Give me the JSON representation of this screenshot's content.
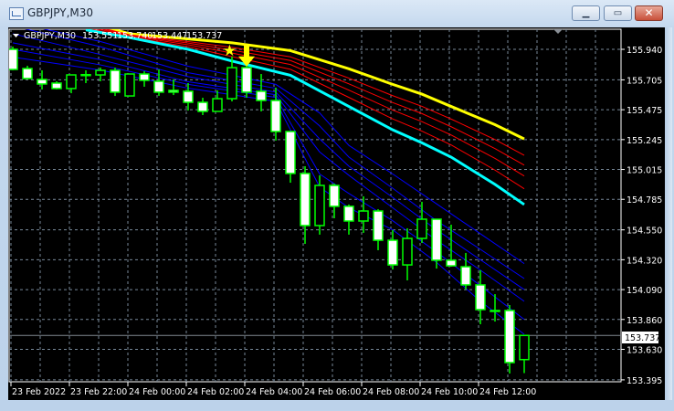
{
  "window": {
    "title": "GBPJPY,M30",
    "buttons": {
      "minimize": "minimize-icon",
      "maximize": "maximize-icon",
      "close": "close-icon"
    }
  },
  "chart_header": {
    "symbol": "GBPJPY,M30",
    "open": "153.551",
    "high": "153.740",
    "low": "153.447",
    "close": "153.737"
  },
  "colors": {
    "background": "#000000",
    "grid": "#778899",
    "candle_outline": "#00ff00",
    "bear_body": "#ffffff",
    "bull_body": "#000000",
    "yellow_line": "#ffff00",
    "red_lines": "#ff0000",
    "cyan_line": "#00ffff",
    "blue_lines": "#0000ff",
    "signal": "#ffff00"
  },
  "chart_data": {
    "type": "candlestick",
    "symbol": "GBPJPY",
    "timeframe": "M30",
    "ylim": [
      153.395,
      156.11
    ],
    "grid": true,
    "current_price": "153.737",
    "y_ticks": [
      "155.940",
      "155.705",
      "155.475",
      "155.245",
      "155.015",
      "154.785",
      "154.550",
      "154.320",
      "154.090",
      "153.860",
      "153.630",
      "153.395"
    ],
    "x_ticks": [
      {
        "label": "23 Feb 2022",
        "candle": 0
      },
      {
        "label": "23 Feb 22:00",
        "candle": 4
      },
      {
        "label": "24 Feb 00:00",
        "candle": 8
      },
      {
        "label": "24 Feb 02:00",
        "candle": 12
      },
      {
        "label": "24 Feb 04:00",
        "candle": 16
      },
      {
        "label": "24 Feb 06:00",
        "candle": 20
      },
      {
        "label": "24 Feb 08:00",
        "candle": 24
      },
      {
        "label": "24 Feb 10:00",
        "candle": 28
      },
      {
        "label": "24 Feb 12:00",
        "candle": 32
      }
    ],
    "candles_ohlc": [
      [
        155.94,
        155.961,
        155.778,
        155.785
      ],
      [
        155.792,
        155.813,
        155.708,
        155.715
      ],
      [
        155.708,
        155.778,
        155.631,
        155.673
      ],
      [
        155.68,
        155.694,
        155.631,
        155.638
      ],
      [
        155.638,
        155.743,
        155.602,
        155.743
      ],
      [
        155.743,
        155.778,
        155.68,
        155.745
      ],
      [
        155.743,
        155.799,
        155.694,
        155.778
      ],
      [
        155.778,
        155.799,
        155.581,
        155.61
      ],
      [
        155.581,
        155.75,
        155.581,
        155.75
      ],
      [
        155.75,
        155.771,
        155.652,
        155.701
      ],
      [
        155.694,
        155.785,
        155.581,
        155.61
      ],
      [
        155.624,
        155.708,
        155.588,
        155.61
      ],
      [
        155.617,
        155.68,
        155.469,
        155.532
      ],
      [
        155.532,
        155.567,
        155.434,
        155.462
      ],
      [
        155.462,
        155.624,
        155.462,
        155.56
      ],
      [
        155.56,
        155.884,
        155.539,
        155.799
      ],
      [
        155.799,
        155.82,
        155.567,
        155.61
      ],
      [
        155.617,
        155.75,
        155.462,
        155.546
      ],
      [
        155.546,
        155.645,
        155.237,
        155.307
      ],
      [
        155.307,
        155.307,
        154.913,
        154.984
      ],
      [
        154.984,
        155.04,
        154.442,
        154.583
      ],
      [
        154.583,
        154.97,
        154.513,
        154.892
      ],
      [
        154.892,
        154.906,
        154.639,
        154.731
      ],
      [
        154.731,
        154.745,
        154.513,
        154.618
      ],
      [
        154.618,
        154.808,
        154.527,
        154.695
      ],
      [
        154.695,
        154.709,
        154.393,
        154.47
      ],
      [
        154.47,
        154.548,
        154.245,
        154.28
      ],
      [
        154.28,
        154.562,
        154.161,
        154.484
      ],
      [
        154.484,
        154.766,
        154.449,
        154.632
      ],
      [
        154.632,
        154.632,
        154.252,
        154.316
      ],
      [
        154.316,
        154.59,
        154.266,
        154.273
      ],
      [
        154.266,
        154.372,
        154.091,
        154.126
      ],
      [
        154.126,
        154.238,
        153.823,
        153.936
      ],
      [
        153.929,
        154.055,
        153.844,
        153.929
      ],
      [
        153.929,
        153.971,
        153.444,
        153.528
      ],
      [
        153.551,
        153.74,
        153.447,
        153.737
      ]
    ],
    "lines": [
      {
        "color": "yellow_line",
        "width": 3,
        "candles": [
          5,
          8,
          12,
          15,
          19,
          23,
          26,
          28,
          30,
          33,
          35
        ],
        "values": [
          156.15,
          156.06,
          156.02,
          155.99,
          155.93,
          155.79,
          155.67,
          155.595,
          155.5,
          155.36,
          155.25
        ]
      },
      {
        "color": "red_lines",
        "width": 1,
        "candles": [
          5,
          8,
          12,
          15,
          19,
          23,
          26,
          28,
          30,
          33,
          35
        ],
        "values": [
          156.135,
          156.052,
          156.0,
          155.955,
          155.882,
          155.718,
          155.583,
          155.501,
          155.403,
          155.245,
          155.124
        ]
      },
      {
        "color": "red_lines",
        "width": 1,
        "candles": [
          5,
          8,
          12,
          15,
          19,
          23,
          26,
          28,
          30,
          33,
          35
        ],
        "values": [
          156.126,
          156.048,
          155.988,
          155.934,
          155.854,
          155.674,
          155.53,
          155.445,
          155.344,
          155.176,
          155.048
        ]
      },
      {
        "color": "red_lines",
        "width": 1,
        "candles": [
          5,
          8,
          12,
          15,
          19,
          23,
          26,
          28,
          30,
          33,
          35
        ],
        "values": [
          156.116,
          156.043,
          155.975,
          155.911,
          155.823,
          155.626,
          155.472,
          155.383,
          155.28,
          155.1,
          154.965
        ]
      },
      {
        "color": "red_lines",
        "width": 1,
        "candles": [
          5,
          8,
          12,
          15,
          19,
          23,
          26,
          28,
          30,
          33,
          35
        ],
        "values": [
          156.104,
          156.037,
          155.959,
          155.884,
          155.786,
          155.57,
          155.404,
          155.31,
          155.204,
          155.01,
          154.866
        ]
      },
      {
        "color": "cyan_line",
        "width": 3,
        "candles": [
          5,
          8,
          12,
          15,
          19,
          23,
          26,
          28,
          30,
          33,
          35
        ],
        "values": [
          156.09,
          156.03,
          155.94,
          155.85,
          155.74,
          155.5,
          155.32,
          155.22,
          155.11,
          154.9,
          154.745
        ]
      },
      {
        "color": "blue_lines",
        "width": 1,
        "candles": [
          0,
          6,
          12,
          18,
          21,
          23,
          26,
          29,
          32,
          35
        ],
        "values": [
          156.15,
          156.0,
          155.81,
          155.67,
          155.45,
          155.2,
          154.98,
          154.75,
          154.52,
          154.29
        ]
      },
      {
        "color": "blue_lines",
        "width": 1,
        "candles": [
          0,
          6,
          12,
          18,
          21,
          23,
          26,
          29,
          32,
          35
        ],
        "values": [
          156.12,
          155.96,
          155.76,
          155.64,
          155.35,
          155.11,
          154.87,
          154.62,
          154.4,
          154.175
        ]
      },
      {
        "color": "blue_lines",
        "width": 1,
        "candles": [
          0,
          6,
          12,
          18,
          21,
          23,
          26,
          29,
          32,
          35
        ],
        "values": [
          156.06,
          155.9,
          155.73,
          155.61,
          155.25,
          155.04,
          154.8,
          154.55,
          154.32,
          154.09
        ]
      },
      {
        "color": "blue_lines",
        "width": 1,
        "candles": [
          0,
          6,
          12,
          18,
          21,
          23,
          26,
          29,
          32,
          35
        ],
        "values": [
          155.99,
          155.86,
          155.69,
          155.59,
          155.15,
          154.97,
          154.72,
          154.47,
          154.24,
          154.0
        ]
      },
      {
        "color": "blue_lines",
        "width": 1,
        "candles": [
          0,
          6,
          12,
          18,
          21,
          23,
          26,
          29,
          32,
          35
        ],
        "values": [
          155.94,
          155.82,
          155.67,
          155.57,
          154.98,
          154.83,
          154.62,
          154.38,
          154.12,
          153.86
        ]
      },
      {
        "color": "blue_lines",
        "width": 1,
        "candles": [
          0,
          6,
          12,
          18,
          21,
          23,
          26,
          29,
          32,
          35
        ],
        "values": [
          155.88,
          155.78,
          155.64,
          155.54,
          154.88,
          154.72,
          154.55,
          154.3,
          154.0,
          153.746
        ]
      }
    ],
    "signals": [
      {
        "type": "star-icon",
        "candle": 14.8,
        "price": 155.96
      },
      {
        "type": "down-arrow-icon",
        "candle": 16,
        "price": 155.9
      }
    ]
  }
}
